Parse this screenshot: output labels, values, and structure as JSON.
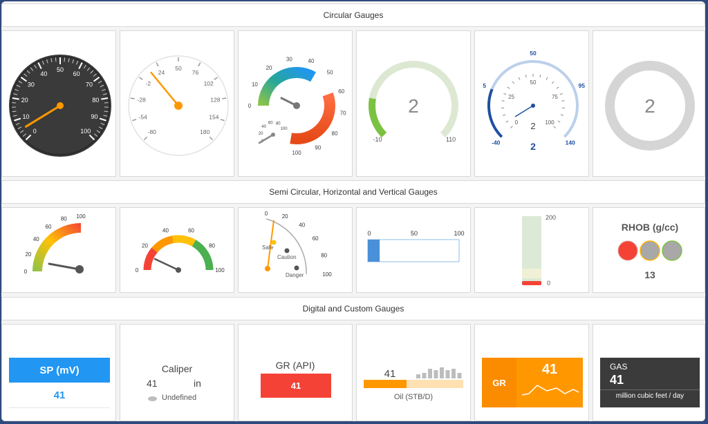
{
  "sections": {
    "circular": "Circular Gauges",
    "semi": "Semi Circular, Horizontal and Vertical Gauges",
    "digital": "Digital and Custom Gauges"
  },
  "circular_gauges": {
    "g1": {
      "ticks": [
        "0",
        "10",
        "20",
        "30",
        "40",
        "50",
        "60",
        "70",
        "80",
        "90",
        "100"
      ],
      "value": 5
    },
    "g2": {
      "ticks": [
        "-80",
        "-54",
        "-28",
        "-2",
        "24",
        "50",
        "76",
        "102",
        "128",
        "154",
        "180"
      ],
      "value": 12
    },
    "g3": {
      "outer_ticks": [
        "0",
        "10",
        "20",
        "30",
        "40",
        "50",
        "60",
        "70",
        "80",
        "90",
        "100"
      ],
      "inner_ticks": [
        "0",
        "20",
        "40",
        "60",
        "80",
        "100"
      ],
      "value": 0
    },
    "g4": {
      "value": "2",
      "min": "-10",
      "max": "110"
    },
    "g5": {
      "outer_ticks": [
        "-40",
        "5",
        "50",
        "95",
        "140"
      ],
      "inner_ticks": [
        "0",
        "25",
        "50",
        "75",
        "100"
      ],
      "value_inner": "2",
      "value_outer": "2"
    },
    "g6": {
      "value": "2"
    }
  },
  "semi_gauges": {
    "s1": {
      "ticks": [
        "0",
        "20",
        "40",
        "60",
        "80",
        "100"
      ],
      "value": 2
    },
    "s2": {
      "ticks": [
        "0",
        "20",
        "40",
        "60",
        "80",
        "100"
      ],
      "value": 20
    },
    "s3": {
      "ticks": [
        "0",
        "20",
        "40",
        "60",
        "80",
        "100"
      ],
      "labels": {
        "safe": "Safe",
        "caution": "Caution",
        "danger": "Danger"
      }
    },
    "linear_h": {
      "ticks": [
        "0",
        "50",
        "100"
      ],
      "value": 13
    },
    "linear_v": {
      "max": "200",
      "min": "0"
    },
    "rhob": {
      "title": "RHOB (g/cc)",
      "value": "13",
      "colors": [
        "#f44336",
        "#a8a8a8",
        "#a8a8a8"
      ]
    }
  },
  "digital_gauges": {
    "sp": {
      "title": "SP (mV)",
      "value": "41"
    },
    "caliper": {
      "title": "Caliper",
      "value": "41",
      "unit": "in",
      "legend": "Undefined"
    },
    "gr_api": {
      "title": "GR (API)",
      "value": "41"
    },
    "oil": {
      "value": "41",
      "label": "Oil (STB/D)"
    },
    "gr": {
      "title": "GR",
      "value": "41"
    },
    "gas": {
      "title": "GAS",
      "value": "41",
      "unit": "million cubic feet / day"
    }
  }
}
